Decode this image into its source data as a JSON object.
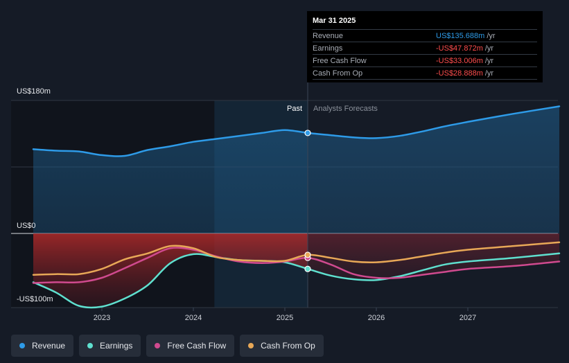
{
  "chart_data": {
    "type": "area",
    "x_ticks": [
      "2023",
      "2024",
      "2025",
      "2026",
      "2027"
    ],
    "y_ticks": [
      "US$180m",
      "US$0",
      "-US$100m"
    ],
    "ylim": [
      -100,
      180
    ],
    "xlim": [
      2022.25,
      2028.0
    ],
    "past_label": "Past",
    "forecast_label": "Analysts Forecasts",
    "divider_x": 2025.25,
    "highlight_x": [
      2024.23,
      2025.25
    ],
    "series": [
      {
        "name": "Revenue",
        "color": "#2e9be8",
        "x": [
          2022.25,
          2022.5,
          2022.75,
          2023.0,
          2023.25,
          2023.5,
          2023.75,
          2024.0,
          2024.25,
          2024.5,
          2024.75,
          2025.0,
          2025.25,
          2025.5,
          2025.75,
          2026.0,
          2026.25,
          2026.5,
          2026.75,
          2027.0,
          2027.5,
          2028.0
        ],
        "y": [
          114,
          112,
          111,
          106,
          105,
          113,
          118,
          124,
          128,
          132,
          136,
          140,
          136,
          133,
          130,
          129,
          132,
          138,
          145,
          151,
          162,
          172
        ]
      },
      {
        "name": "Earnings",
        "color": "#5fe0cf",
        "x": [
          2022.25,
          2022.5,
          2022.75,
          2023.0,
          2023.25,
          2023.5,
          2023.75,
          2024.0,
          2024.25,
          2024.5,
          2024.75,
          2025.0,
          2025.25,
          2025.5,
          2025.75,
          2026.0,
          2026.25,
          2026.5,
          2026.75,
          2027.0,
          2027.5,
          2028.0
        ],
        "y": [
          -66,
          -80,
          -98,
          -99,
          -88,
          -70,
          -40,
          -28,
          -32,
          -36,
          -37,
          -39,
          -48,
          -57,
          -62,
          -63,
          -58,
          -50,
          -42,
          -38,
          -33,
          -27
        ]
      },
      {
        "name": "Free Cash Flow",
        "color": "#d04a8f",
        "x": [
          2022.25,
          2022.5,
          2022.75,
          2023.0,
          2023.25,
          2023.5,
          2023.75,
          2024.0,
          2024.25,
          2024.5,
          2024.75,
          2025.0,
          2025.25,
          2025.5,
          2025.75,
          2026.0,
          2026.25,
          2026.5,
          2026.75,
          2027.0,
          2027.5,
          2028.0
        ],
        "y": [
          -67,
          -66,
          -66,
          -60,
          -47,
          -33,
          -20,
          -22,
          -31,
          -38,
          -40,
          -38,
          -33,
          -42,
          -55,
          -60,
          -60,
          -56,
          -52,
          -48,
          -44,
          -38
        ]
      },
      {
        "name": "Cash From Op",
        "color": "#e8a857",
        "x": [
          2022.25,
          2022.5,
          2022.75,
          2023.0,
          2023.25,
          2023.5,
          2023.75,
          2024.0,
          2024.25,
          2024.5,
          2024.75,
          2025.0,
          2025.25,
          2025.5,
          2025.75,
          2026.0,
          2026.25,
          2026.5,
          2026.75,
          2027.0,
          2027.5,
          2028.0
        ],
        "y": [
          -56,
          -55,
          -55,
          -48,
          -35,
          -27,
          -17,
          -20,
          -32,
          -36,
          -37,
          -37,
          -29,
          -33,
          -38,
          -39,
          -36,
          -31,
          -26,
          -22,
          -17,
          -12
        ]
      }
    ]
  },
  "tooltip": {
    "date": "Mar 31 2025",
    "rows": [
      {
        "label": "Revenue",
        "value": "US$135.688m",
        "unit": "/yr",
        "color": "#2e9be8"
      },
      {
        "label": "Earnings",
        "value": "-US$47.872m",
        "unit": "/yr",
        "color": "#ff4d4d"
      },
      {
        "label": "Free Cash Flow",
        "value": "-US$33.006m",
        "unit": "/yr",
        "color": "#ff4d4d"
      },
      {
        "label": "Cash From Op",
        "value": "-US$28.888m",
        "unit": "/yr",
        "color": "#ff4d4d"
      }
    ]
  },
  "legend": [
    {
      "label": "Revenue",
      "color": "#2e9be8"
    },
    {
      "label": "Earnings",
      "color": "#5fe0cf"
    },
    {
      "label": "Free Cash Flow",
      "color": "#d04a8f"
    },
    {
      "label": "Cash From Op",
      "color": "#e8a857"
    }
  ]
}
